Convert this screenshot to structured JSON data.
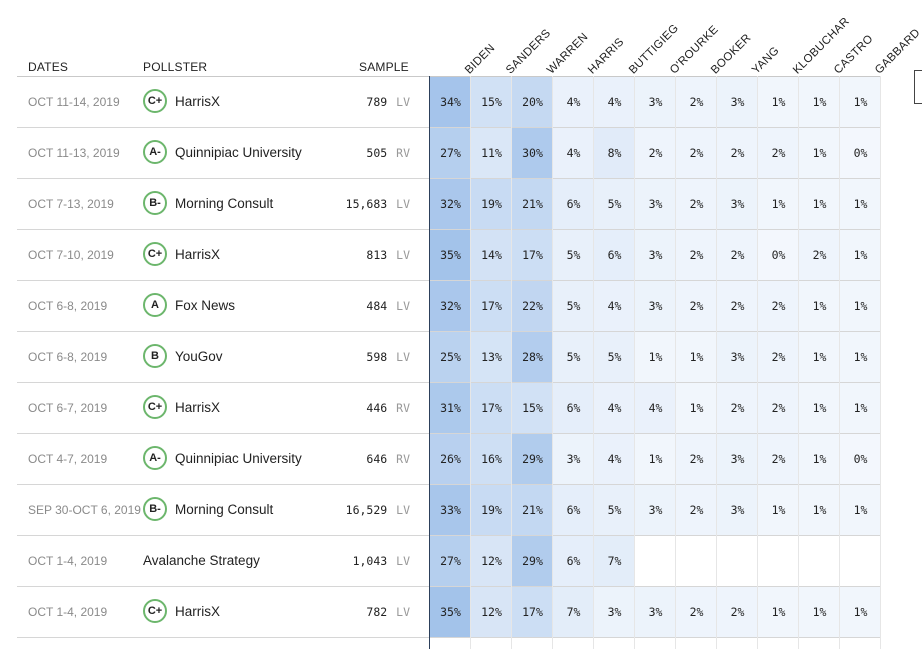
{
  "headers": {
    "dates": "DATES",
    "pollster": "POLLSTER",
    "sample": "SAMPLE"
  },
  "candidates": [
    "BIDEN",
    "SANDERS",
    "WARREN",
    "HARRIS",
    "BUTTIGIEG",
    "O'ROURKE",
    "BOOKER",
    "YANG",
    "KLOBUCHAR",
    "CASTRO",
    "GABBARD"
  ],
  "colors": {
    "grade_ring": "#6cb66c",
    "biden_divider": "#2c3f5a",
    "shade_low": "#f3f7fd",
    "shade_high": "#a3c3ea"
  },
  "rows": [
    {
      "dates": "OCT 11-14, 2019",
      "grade": "C+",
      "pollster": "HarrisX",
      "sample": "789",
      "population": "LV",
      "values": [
        "34%",
        "15%",
        "20%",
        "4%",
        "4%",
        "3%",
        "2%",
        "3%",
        "1%",
        "1%",
        "1%"
      ]
    },
    {
      "dates": "OCT 11-13, 2019",
      "grade": "A-",
      "pollster": "Quinnipiac University",
      "sample": "505",
      "population": "RV",
      "values": [
        "27%",
        "11%",
        "30%",
        "4%",
        "8%",
        "2%",
        "2%",
        "2%",
        "2%",
        "1%",
        "0%"
      ]
    },
    {
      "dates": "OCT 7-13, 2019",
      "grade": "B-",
      "pollster": "Morning Consult",
      "sample": "15,683",
      "population": "LV",
      "values": [
        "32%",
        "19%",
        "21%",
        "6%",
        "5%",
        "3%",
        "2%",
        "3%",
        "1%",
        "1%",
        "1%"
      ]
    },
    {
      "dates": "OCT 7-10, 2019",
      "grade": "C+",
      "pollster": "HarrisX",
      "sample": "813",
      "population": "LV",
      "values": [
        "35%",
        "14%",
        "17%",
        "5%",
        "6%",
        "3%",
        "2%",
        "2%",
        "0%",
        "2%",
        "1%"
      ]
    },
    {
      "dates": "OCT 6-8, 2019",
      "grade": "A",
      "pollster": "Fox News",
      "sample": "484",
      "population": "LV",
      "values": [
        "32%",
        "17%",
        "22%",
        "5%",
        "4%",
        "3%",
        "2%",
        "2%",
        "2%",
        "1%",
        "1%"
      ]
    },
    {
      "dates": "OCT 6-8, 2019",
      "grade": "B",
      "pollster": "YouGov",
      "sample": "598",
      "population": "LV",
      "values": [
        "25%",
        "13%",
        "28%",
        "5%",
        "5%",
        "1%",
        "1%",
        "3%",
        "2%",
        "1%",
        "1%"
      ]
    },
    {
      "dates": "OCT 6-7, 2019",
      "grade": "C+",
      "pollster": "HarrisX",
      "sample": "446",
      "population": "RV",
      "values": [
        "31%",
        "17%",
        "15%",
        "6%",
        "4%",
        "4%",
        "1%",
        "2%",
        "2%",
        "1%",
        "1%"
      ]
    },
    {
      "dates": "OCT 4-7, 2019",
      "grade": "A-",
      "pollster": "Quinnipiac University",
      "sample": "646",
      "population": "RV",
      "values": [
        "26%",
        "16%",
        "29%",
        "3%",
        "4%",
        "1%",
        "2%",
        "3%",
        "2%",
        "1%",
        "0%"
      ]
    },
    {
      "dates": "SEP 30-OCT 6, 2019",
      "grade": "B-",
      "pollster": "Morning Consult",
      "sample": "16,529",
      "population": "LV",
      "values": [
        "33%",
        "19%",
        "21%",
        "6%",
        "5%",
        "3%",
        "2%",
        "3%",
        "1%",
        "1%",
        "1%"
      ]
    },
    {
      "dates": "OCT 1-4, 2019",
      "grade": null,
      "pollster": "Avalanche Strategy",
      "sample": "1,043",
      "population": "LV",
      "values": [
        "27%",
        "12%",
        "29%",
        "6%",
        "7%",
        null,
        null,
        null,
        null,
        null,
        null
      ]
    },
    {
      "dates": "OCT 1-4, 2019",
      "grade": "C+",
      "pollster": "HarrisX",
      "sample": "782",
      "population": "LV",
      "values": [
        "35%",
        "12%",
        "17%",
        "7%",
        "3%",
        "3%",
        "2%",
        "2%",
        "1%",
        "1%",
        "1%"
      ]
    }
  ]
}
